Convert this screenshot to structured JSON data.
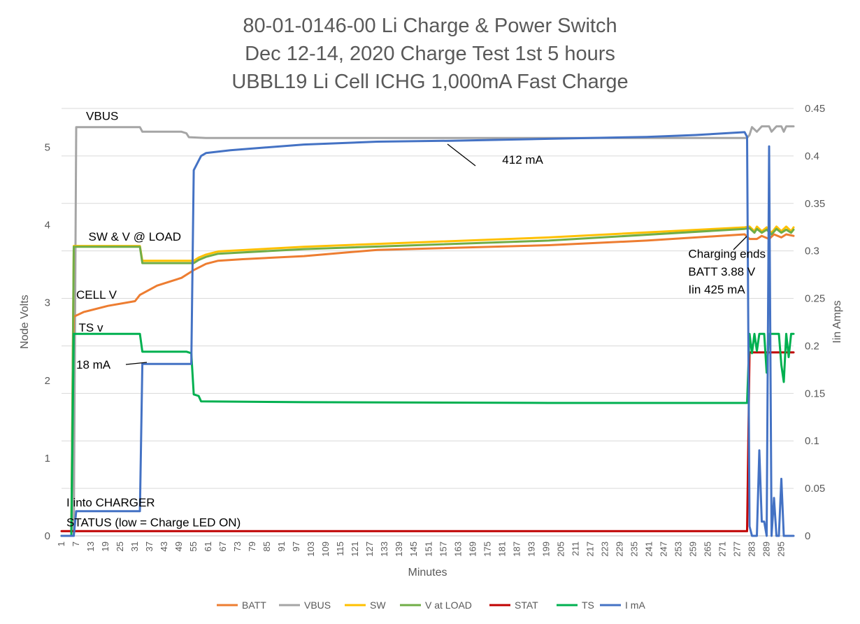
{
  "chart_data": {
    "type": "line",
    "title": "80-01-0146-00 Li Charge & Power Switch",
    "subtitle_1": "Dec 12-14, 2020 Charge Test 1st 5 hours",
    "subtitle_2": "UBBL19 Li Cell ICHG 1,000mA Fast Charge",
    "xlabel": "Minutes",
    "ylabel_left": "Node Volts",
    "ylabel_right": "Iin Amps",
    "xlim": [
      1,
      300
    ],
    "ylim_left": [
      0,
      5.5
    ],
    "ylim_right": [
      0,
      0.45
    ],
    "yticks_left": [
      "0",
      "1",
      "2",
      "3",
      "4",
      "5"
    ],
    "yticks_right": [
      "0",
      "0.05",
      "0.1",
      "0.15",
      "0.2",
      "0.25",
      "0.3",
      "0.35",
      "0.4",
      "0.45"
    ],
    "xticks": [
      "1",
      "7",
      "13",
      "19",
      "25",
      "31",
      "37",
      "43",
      "49",
      "55",
      "61",
      "67",
      "73",
      "79",
      "85",
      "91",
      "97",
      "103",
      "109",
      "115",
      "121",
      "127",
      "133",
      "139",
      "145",
      "151",
      "157",
      "163",
      "169",
      "175",
      "181",
      "187",
      "193",
      "199",
      "205",
      "211",
      "217",
      "223",
      "229",
      "235",
      "241",
      "247",
      "253",
      "259",
      "265",
      "271",
      "277",
      "283",
      "289",
      "295"
    ],
    "grid": "horizontal",
    "legend_position": "bottom",
    "series": [
      {
        "name": "BATT",
        "axis": "left",
        "color": "#ED7D31",
        "x": [
          1,
          5,
          6,
          10,
          20,
          31,
          33,
          40,
          50,
          55,
          60,
          65,
          75,
          100,
          130,
          200,
          240,
          280,
          282,
          285,
          287,
          290,
          292,
          295,
          297,
          300
        ],
        "y": [
          0,
          0,
          2.82,
          2.88,
          2.96,
          3.02,
          3.1,
          3.22,
          3.32,
          3.42,
          3.5,
          3.54,
          3.56,
          3.6,
          3.68,
          3.74,
          3.8,
          3.88,
          3.82,
          3.82,
          3.86,
          3.82,
          3.88,
          3.84,
          3.88,
          3.86
        ]
      },
      {
        "name": "VBUS",
        "axis": "left",
        "color": "#A5A5A5",
        "x": [
          1,
          6,
          7,
          33,
          34,
          50,
          52,
          53,
          60,
          100,
          200,
          280,
          281,
          282,
          283,
          285,
          287,
          290,
          291,
          293,
          295,
          296,
          297,
          298,
          300
        ],
        "y": [
          0,
          0,
          5.26,
          5.26,
          5.2,
          5.2,
          5.18,
          5.13,
          5.12,
          5.12,
          5.12,
          5.12,
          5.12,
          5.16,
          5.26,
          5.2,
          5.27,
          5.27,
          5.2,
          5.27,
          5.27,
          5.2,
          5.27,
          5.27,
          5.27
        ]
      },
      {
        "name": "SW",
        "axis": "left",
        "color": "#FFC000",
        "x": [
          1,
          5,
          6,
          33,
          34,
          55,
          57,
          60,
          65,
          100,
          200,
          280,
          282,
          284,
          285,
          287,
          289,
          291,
          293,
          295,
          297,
          299,
          300
        ],
        "y": [
          0,
          0,
          3.73,
          3.73,
          3.54,
          3.54,
          3.58,
          3.62,
          3.66,
          3.72,
          3.84,
          3.97,
          3.98,
          3.92,
          3.98,
          3.92,
          3.97,
          3.9,
          3.98,
          3.92,
          3.98,
          3.92,
          3.97
        ]
      },
      {
        "name": "V at LOAD",
        "axis": "left",
        "color": "#70AD47",
        "x": [
          1,
          5,
          6,
          33,
          34,
          55,
          57,
          60,
          65,
          100,
          200,
          280,
          282,
          284,
          285,
          287,
          289,
          291,
          293,
          295,
          297,
          299,
          300
        ],
        "y": [
          0,
          0,
          3.72,
          3.72,
          3.51,
          3.51,
          3.55,
          3.59,
          3.63,
          3.69,
          3.8,
          3.95,
          3.96,
          3.9,
          3.95,
          3.9,
          3.94,
          3.88,
          3.95,
          3.9,
          3.94,
          3.9,
          3.94
        ]
      },
      {
        "name": "STAT",
        "axis": "left",
        "color": "#C00000",
        "x": [
          1,
          280,
          281,
          282,
          283,
          300
        ],
        "y": [
          0.06,
          0.06,
          0.06,
          2.36,
          2.36,
          2.36
        ]
      },
      {
        "name": "TS",
        "axis": "left",
        "color": "#00B050",
        "x": [
          1,
          5,
          6,
          33,
          34,
          52,
          54,
          55,
          57,
          58,
          100,
          200,
          280,
          281,
          282,
          283,
          284,
          285,
          286,
          287,
          288,
          289,
          290,
          291,
          292,
          293,
          294,
          295,
          296,
          297,
          298,
          299,
          300
        ],
        "y": [
          0,
          0,
          2.6,
          2.6,
          2.37,
          2.37,
          2.35,
          1.82,
          1.8,
          1.73,
          1.72,
          1.71,
          1.71,
          1.71,
          2.6,
          2.35,
          2.6,
          2.38,
          2.6,
          2.6,
          2.6,
          2.1,
          2.6,
          2.6,
          2.6,
          2.6,
          2.6,
          2.2,
          1.98,
          2.6,
          2.3,
          2.6,
          2.6
        ]
      },
      {
        "name": "I mA",
        "axis": "right",
        "color": "#4472C4",
        "x": [
          1,
          6,
          7,
          33,
          34,
          54,
          55,
          57,
          58,
          60,
          70,
          100,
          130,
          160,
          200,
          240,
          260,
          280,
          281,
          282,
          283,
          284,
          285,
          286,
          287,
          288,
          289,
          290,
          291,
          292,
          293,
          294,
          295,
          296,
          297,
          298,
          299,
          300
        ],
        "y": [
          0,
          0,
          0.026,
          0.026,
          0.181,
          0.181,
          0.385,
          0.395,
          0.4,
          0.403,
          0.406,
          0.412,
          0.415,
          0.416,
          0.418,
          0.42,
          0.422,
          0.425,
          0.42,
          0.01,
          0.0,
          0.0,
          0.0,
          0.09,
          0.015,
          0.015,
          0.0,
          0.41,
          0.0,
          0.04,
          0.0,
          0.0,
          0.06,
          0.0,
          0.0,
          0.0,
          0.0,
          0.0
        ]
      }
    ],
    "annotations": [
      {
        "text": "VBUS",
        "x": 11,
        "y": 5.35
      },
      {
        "text": "412 mA",
        "x": 181,
        "y": 4.79
      },
      {
        "text": "SW & V @ LOAD",
        "x": 12,
        "y": 3.8
      },
      {
        "text": "CELL V",
        "x": 7,
        "y": 3.05
      },
      {
        "text": "TS v",
        "x": 8,
        "y": 2.63
      },
      {
        "text": "18 mA",
        "x": 7,
        "y": 2.15
      },
      {
        "text": "Charging ends",
        "x": 257,
        "y": 3.58
      },
      {
        "text": "BATT 3.88 V",
        "x": 257,
        "y": 3.35
      },
      {
        "text": "Iin 425 mA",
        "x": 257,
        "y": 3.12
      },
      {
        "text": "I into CHARGER",
        "x": 3,
        "y": 0.38
      },
      {
        "text": "STATUS (low = Charge LED ON)",
        "x": 3,
        "y": 0.12
      }
    ]
  }
}
